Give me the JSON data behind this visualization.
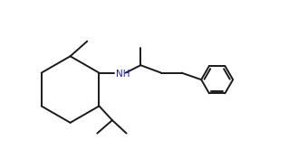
{
  "bg_color": "#ffffff",
  "line_color": "#1a1a1a",
  "nh_color": "#2222aa",
  "lw": 1.4,
  "fig_width": 3.18,
  "fig_height": 1.86,
  "dpi": 100,
  "xlim": [
    0.0,
    10.5
  ],
  "ylim": [
    0.5,
    6.0
  ]
}
